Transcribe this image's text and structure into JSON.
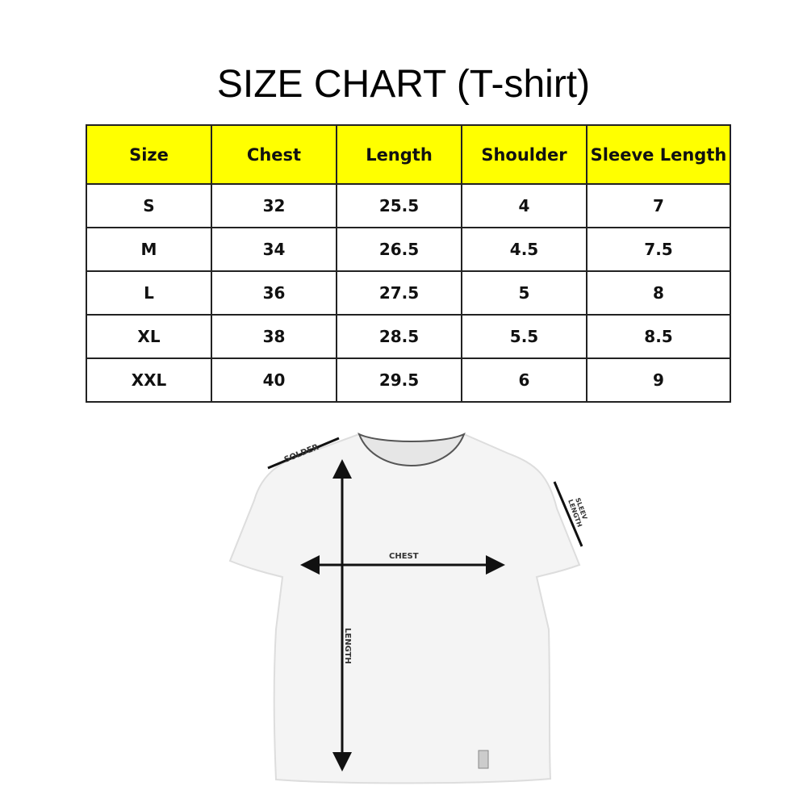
{
  "title": "SIZE CHART (T-shirt)",
  "table": {
    "headers": [
      "Size",
      "Chest",
      "Length",
      "Shoulder",
      "Sleeve Length"
    ],
    "rows": [
      [
        "S",
        "32",
        "25.5",
        "4",
        "7"
      ],
      [
        "M",
        "34",
        "26.5",
        "4.5",
        "7.5"
      ],
      [
        "L",
        "36",
        "27.5",
        "5",
        "8"
      ],
      [
        "XL",
        "38",
        "28.5",
        "5.5",
        "8.5"
      ],
      [
        "XXL",
        "40",
        "29.5",
        "6",
        "9"
      ]
    ],
    "header_color": "#ffff00"
  },
  "diagram": {
    "shoulder_label": "SOLDER",
    "chest_label": "CHEST",
    "length_label": "LENGTH",
    "sleeve_label_line1": "SLEEV",
    "sleeve_label_line2": "LENGTH"
  }
}
